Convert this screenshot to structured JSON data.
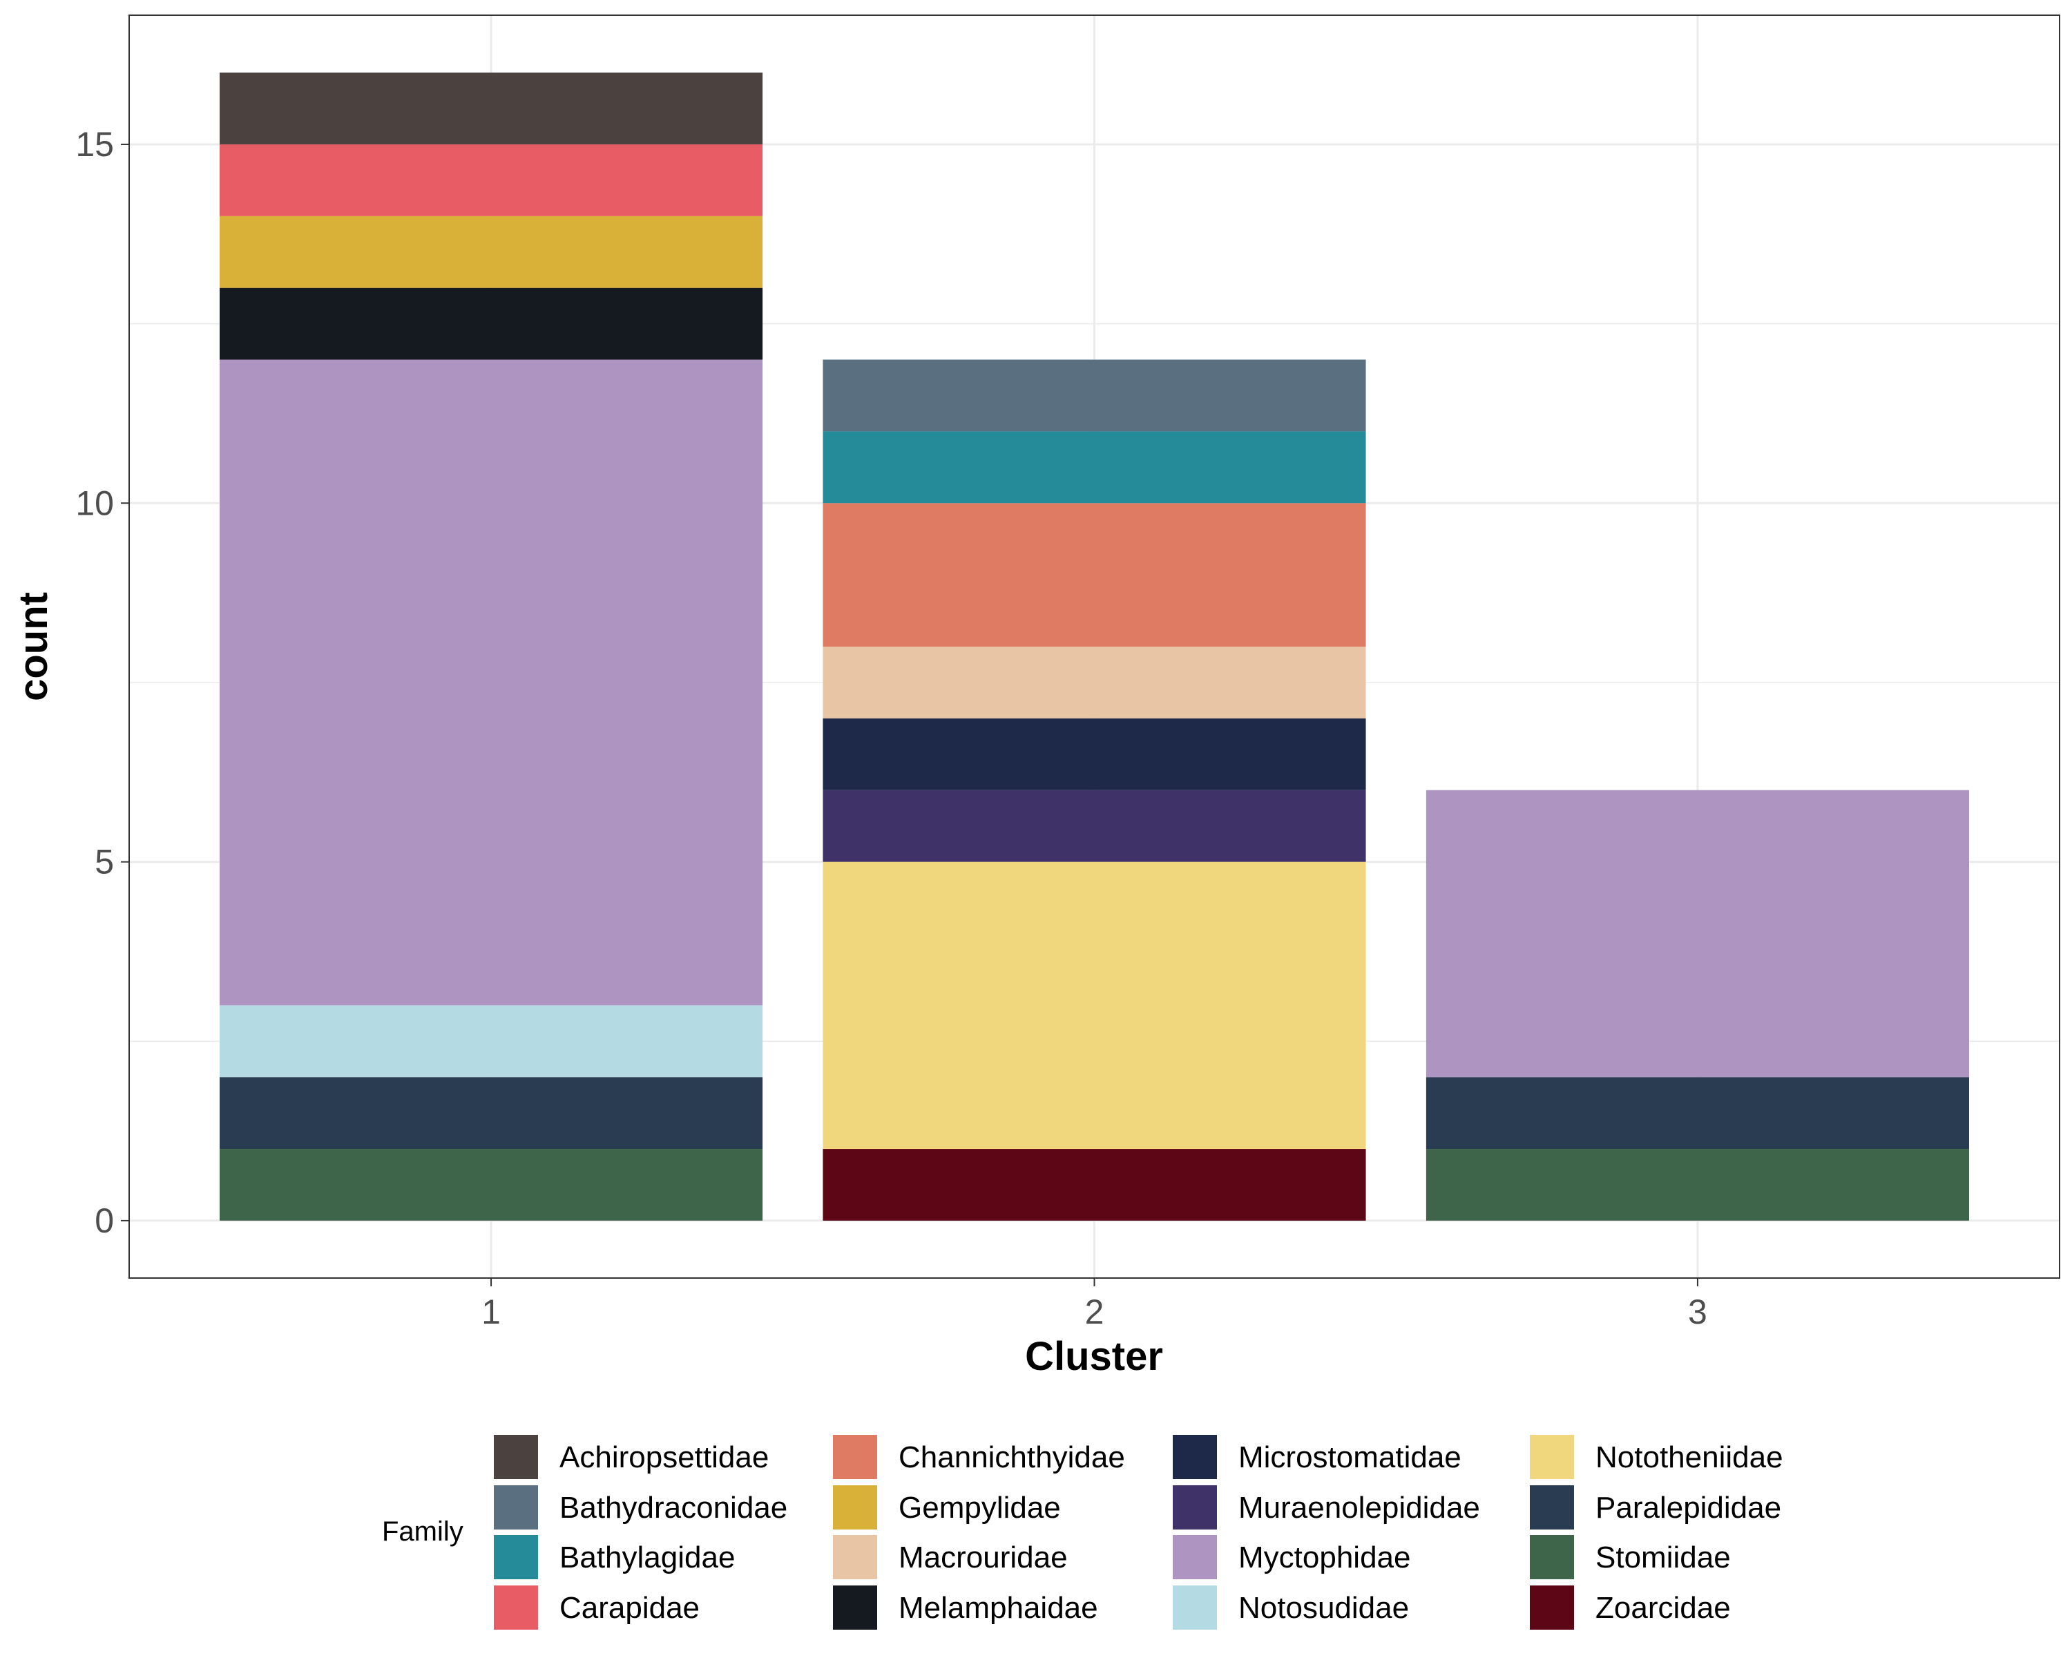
{
  "chart_data": {
    "type": "bar",
    "stacked": true,
    "categories": [
      "1",
      "2",
      "3"
    ],
    "xlabel": "Cluster",
    "ylabel": "count",
    "ylim": [
      -0.8,
      16.8
    ],
    "yticks": [
      0,
      5,
      10,
      15
    ],
    "grid": true,
    "legend_position": "bottom",
    "legend_title": "Family",
    "series": [
      {
        "name": "Achiropsettidae",
        "color": "#4b4240",
        "values": [
          1,
          0,
          0
        ]
      },
      {
        "name": "Bathydraconidae",
        "color": "#5a7080",
        "values": [
          0,
          1,
          0
        ]
      },
      {
        "name": "Bathylagidae",
        "color": "#268b99",
        "values": [
          0,
          1,
          0
        ]
      },
      {
        "name": "Carapidae",
        "color": "#e85c66",
        "values": [
          1,
          0,
          0
        ]
      },
      {
        "name": "Channichthyidae",
        "color": "#df7a63",
        "values": [
          0,
          2,
          0
        ]
      },
      {
        "name": "Gempylidae",
        "color": "#d9b139",
        "values": [
          1,
          0,
          0
        ]
      },
      {
        "name": "Macrouridae",
        "color": "#e8c5a5",
        "values": [
          0,
          1,
          0
        ]
      },
      {
        "name": "Melamphaidae",
        "color": "#151a21",
        "values": [
          1,
          0,
          0
        ]
      },
      {
        "name": "Microstomatidae",
        "color": "#1e2848",
        "values": [
          0,
          1,
          0
        ]
      },
      {
        "name": "Muraenolepididae",
        "color": "#3f3268",
        "values": [
          0,
          1,
          0
        ]
      },
      {
        "name": "Myctophidae",
        "color": "#ae94c0",
        "values": [
          9,
          0,
          4
        ]
      },
      {
        "name": "Notosudidae",
        "color": "#b4dae4",
        "values": [
          1,
          0,
          0
        ]
      },
      {
        "name": "Nototheniidae",
        "color": "#f0d77e",
        "values": [
          0,
          4,
          0
        ]
      },
      {
        "name": "Paralepididae",
        "color": "#2a3c52",
        "values": [
          1,
          0,
          1
        ]
      },
      {
        "name": "Stomiidae",
        "color": "#3e644a",
        "values": [
          1,
          0,
          1
        ]
      },
      {
        "name": "Zoarcidae",
        "color": "#5c0616",
        "values": [
          0,
          1,
          0
        ]
      }
    ]
  }
}
